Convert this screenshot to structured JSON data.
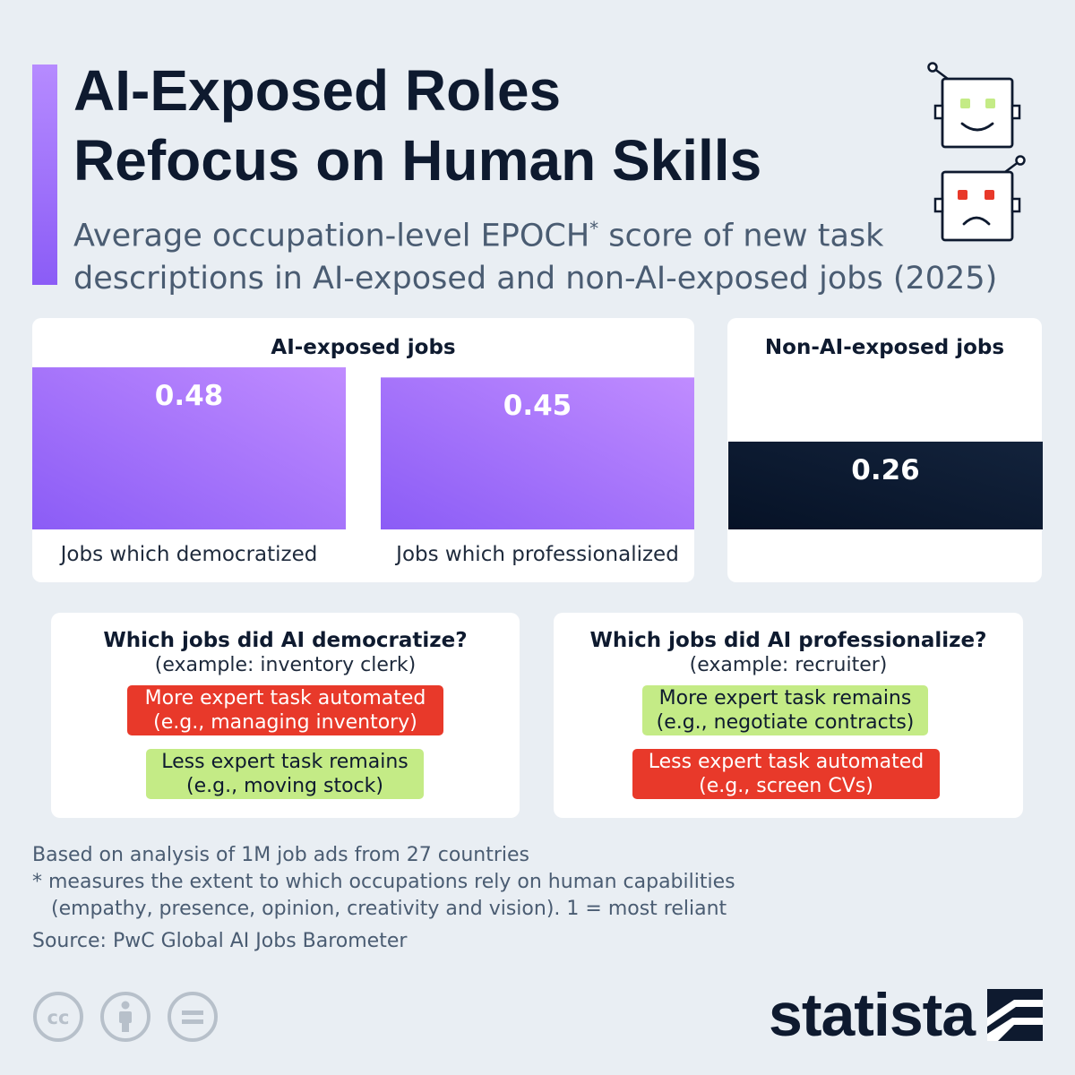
{
  "header": {
    "title_line1": "AI-Exposed Roles",
    "title_line2": "Refocus on Human Skills",
    "subtitle_line1_pre": "Average occupation-level EPOCH",
    "subtitle_sup": "*",
    "subtitle_line1_post": " score of new task",
    "subtitle_line2": "descriptions in AI-exposed and non-AI-exposed jobs (2025)",
    "icons": [
      "happy-robot-icon",
      "sad-robot-icon"
    ]
  },
  "chart_data": {
    "type": "bar",
    "groups": [
      {
        "name": "AI-exposed jobs",
        "categories": [
          "Jobs which democratized",
          "Jobs which professionalized"
        ],
        "values": [
          0.48,
          0.45
        ],
        "labels": [
          "0.48",
          "0.45"
        ]
      },
      {
        "name": "Non-AI-exposed jobs",
        "categories": [
          ""
        ],
        "values": [
          0.26
        ],
        "labels": [
          "0.26"
        ]
      }
    ],
    "colors": {
      "ai_exposed": "#9f6bff",
      "non_ai_exposed": "#0e1a2f"
    }
  },
  "explainers": [
    {
      "title": "Which jobs did AI democratize?",
      "example": "(example: inventory clerk)",
      "chips": [
        {
          "color": "red",
          "line1": "More expert task automated",
          "line2": "(e.g., managing inventory)"
        },
        {
          "color": "green",
          "line1": "Less expert task remains",
          "line2": "(e.g., moving stock)"
        }
      ]
    },
    {
      "title": "Which jobs did AI professionalize?",
      "example": "(example: recruiter)",
      "chips": [
        {
          "color": "green",
          "line1": "More expert task remains",
          "line2": "(e.g., negotiate contracts)"
        },
        {
          "color": "red",
          "line1": "Less expert task automated",
          "line2": "(e.g., screen CVs)"
        }
      ]
    }
  ],
  "notes": {
    "line1": "Based on analysis of 1M job ads from 27 countries",
    "line2": "* measures the extent to which occupations rely on human capabilities",
    "line3": "   (empathy, presence, opinion, creativity and vision). 1 = most reliant",
    "source": "Source: PwC Global AI Jobs Barometer"
  },
  "footer": {
    "brand": "statista",
    "license_icons": [
      "cc-icon",
      "attribution-icon",
      "no-derivatives-icon"
    ]
  }
}
